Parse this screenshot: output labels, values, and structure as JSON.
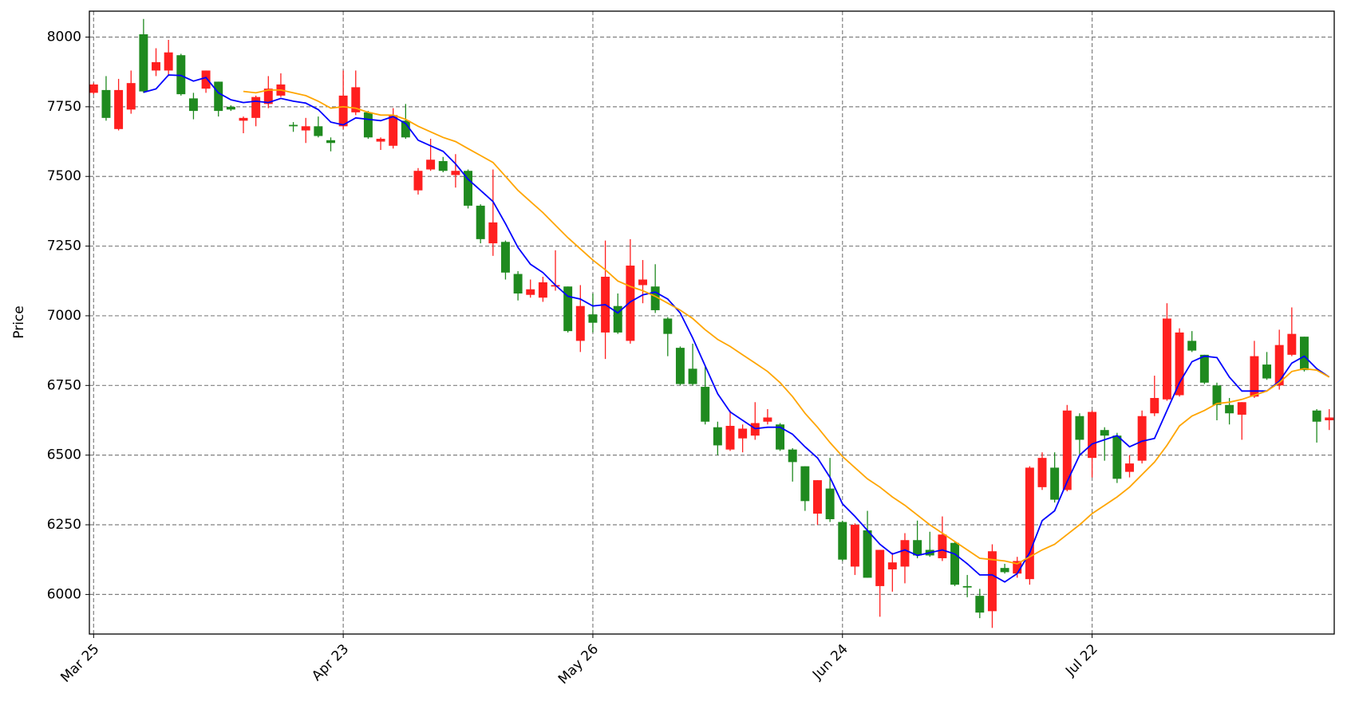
{
  "chart_data": {
    "type": "candlestick",
    "ylabel": "Price",
    "categories": [
      "Mar 25",
      null,
      null,
      null,
      null,
      null,
      null,
      null,
      null,
      null,
      null,
      null,
      null,
      null,
      null,
      null,
      null,
      null,
      null,
      null,
      "Apr 23",
      null,
      null,
      null,
      null,
      null,
      null,
      null,
      null,
      null,
      null,
      null,
      null,
      null,
      null,
      null,
      null,
      null,
      null,
      null,
      "May 26",
      null,
      null,
      null,
      null,
      null,
      null,
      null,
      null,
      null,
      null,
      null,
      null,
      null,
      null,
      null,
      null,
      null,
      null,
      null,
      "Jun 24",
      null,
      null,
      null,
      null,
      null,
      null,
      null,
      null,
      null,
      null,
      null,
      null,
      null,
      null,
      null,
      null,
      null,
      null,
      null,
      "Jul 22",
      null,
      null,
      null,
      null,
      null,
      null,
      null,
      null,
      null,
      null,
      null,
      null,
      null,
      null,
      null,
      null,
      null,
      null,
      null
    ],
    "open": [
      7800,
      7810,
      7670,
      7740,
      8010,
      7880,
      7880,
      7935,
      7780,
      7815,
      7840,
      7750,
      7700,
      7710,
      7760,
      7790,
      7685,
      7665,
      7680,
      7630,
      7680,
      7730,
      7730,
      7625,
      7610,
      7700,
      7450,
      7525,
      7555,
      7505,
      7520,
      7395,
      7260,
      7265,
      7150,
      7075,
      7065,
      7105,
      7105,
      6910,
      7005,
      6940,
      7035,
      6910,
      7110,
      7105,
      6990,
      6885,
      6810,
      6745,
      6600,
      6520,
      6560,
      6570,
      6620,
      6610,
      6520,
      6460,
      6290,
      6380,
      6260,
      6100,
      6230,
      6030,
      6090,
      6100,
      6195,
      6160,
      6130,
      6185,
      6030,
      5995,
      5940,
      6095,
      6075,
      6055,
      6385,
      6455,
      6375,
      6640,
      6490,
      6590,
      6570,
      6440,
      6480,
      6650,
      6700,
      6715,
      6910,
      6860,
      6750,
      6680,
      6645,
      6710,
      6825,
      6750,
      6860,
      6925,
      6660,
      6625
    ],
    "close": [
      7830,
      7710,
      7810,
      7835,
      7805,
      7910,
      7945,
      7795,
      7735,
      7880,
      7735,
      7740,
      7710,
      7785,
      7815,
      7830,
      7680,
      7680,
      7645,
      7620,
      7790,
      7820,
      7640,
      7635,
      7720,
      7640,
      7520,
      7560,
      7520,
      7520,
      7395,
      7275,
      7335,
      7155,
      7080,
      7095,
      7120,
      7110,
      6945,
      7035,
      6975,
      7140,
      6940,
      7180,
      7130,
      7020,
      6935,
      6755,
      6755,
      6620,
      6535,
      6605,
      6595,
      6615,
      6635,
      6520,
      6475,
      6335,
      6410,
      6270,
      6125,
      6250,
      6060,
      6160,
      6115,
      6195,
      6140,
      6140,
      6215,
      6035,
      6025,
      5935,
      6155,
      6080,
      6120,
      6455,
      6490,
      6340,
      6660,
      6555,
      6655,
      6570,
      6415,
      6470,
      6640,
      6705,
      6990,
      6940,
      6875,
      6760,
      6680,
      6650,
      6690,
      6855,
      6775,
      6895,
      6935,
      6805,
      6620,
      6635
    ],
    "high": [
      7835,
      7860,
      7850,
      7880,
      8065,
      7960,
      7990,
      7940,
      7800,
      7880,
      7840,
      7755,
      7715,
      7790,
      7860,
      7870,
      7695,
      7710,
      7715,
      7640,
      7880,
      7880,
      7735,
      7640,
      7745,
      7760,
      7530,
      7635,
      7570,
      7580,
      7525,
      7400,
      7525,
      7270,
      7160,
      7130,
      7140,
      7235,
      7105,
      7110,
      7080,
      7270,
      7080,
      7275,
      7200,
      7185,
      6995,
      6890,
      6900,
      6820,
      6620,
      6660,
      6610,
      6690,
      6665,
      6615,
      6525,
      6460,
      6410,
      6490,
      6265,
      6255,
      6300,
      6160,
      6150,
      6220,
      6265,
      6225,
      6280,
      6190,
      6070,
      6020,
      6180,
      6110,
      6135,
      6460,
      6510,
      6510,
      6680,
      6650,
      6660,
      6600,
      6580,
      6500,
      6660,
      6785,
      7045,
      6955,
      6945,
      6860,
      6760,
      6705,
      6690,
      6910,
      6870,
      6950,
      7030,
      6925,
      6665,
      6665
    ],
    "low": [
      7795,
      7700,
      7665,
      7725,
      7800,
      7860,
      7860,
      7790,
      7705,
      7800,
      7715,
      7735,
      7655,
      7680,
      7745,
      7785,
      7660,
      7620,
      7640,
      7590,
      7670,
      7720,
      7635,
      7595,
      7600,
      7635,
      7435,
      7520,
      7515,
      7460,
      7385,
      7260,
      7215,
      7130,
      7055,
      7065,
      7050,
      7090,
      6940,
      6870,
      6940,
      6845,
      6935,
      6900,
      7045,
      7010,
      6855,
      6750,
      6750,
      6610,
      6500,
      6515,
      6510,
      6555,
      6610,
      6515,
      6405,
      6300,
      6250,
      6260,
      6120,
      6070,
      6060,
      5920,
      6010,
      6040,
      6130,
      6135,
      6120,
      6030,
      5990,
      5915,
      5880,
      6075,
      6060,
      6035,
      6375,
      6330,
      6370,
      6500,
      6420,
      6480,
      6400,
      6420,
      6470,
      6640,
      6695,
      6710,
      6870,
      6755,
      6625,
      6610,
      6555,
      6705,
      6770,
      6735,
      6855,
      6800,
      6545,
      6590
    ],
    "up_color": "#ff1f1f",
    "down_color": "#1f8a1f",
    "series": [
      {
        "color": "#0000ff",
        "values": [
          null,
          null,
          null,
          null,
          7802,
          7814,
          7864,
          7862,
          7842,
          7855,
          7800,
          7775,
          7765,
          7770,
          7765,
          7780,
          7770,
          7763,
          7740,
          7695,
          7685,
          7710,
          7705,
          7700,
          7715,
          7690,
          7630,
          7610,
          7590,
          7545,
          7490,
          7450,
          7410,
          7330,
          7245,
          7185,
          7155,
          7110,
          7070,
          7060,
          7035,
          7040,
          7010,
          7050,
          7075,
          7085,
          7060,
          7010,
          6920,
          6820,
          6720,
          6655,
          6625,
          6595,
          6600,
          6600,
          6575,
          6530,
          6490,
          6420,
          6325,
          6280,
          6230,
          6180,
          6145,
          6160,
          6140,
          6150,
          6160,
          6145,
          6110,
          6070,
          6070,
          6045,
          6075,
          6150,
          6265,
          6300,
          6405,
          6500,
          6540,
          6555,
          6570,
          6530,
          6550,
          6560,
          6660,
          6760,
          6835,
          6855,
          6850,
          6780,
          6730,
          6730,
          6730,
          6765,
          6830,
          6855,
          6810,
          6780
        ]
      },
      {
        "color": "#ffa500",
        "values": [
          null,
          null,
          null,
          null,
          null,
          null,
          null,
          null,
          null,
          null,
          null,
          null,
          7805,
          7800,
          7810,
          7810,
          7800,
          7790,
          7770,
          7745,
          7750,
          7745,
          7730,
          7720,
          7720,
          7705,
          7680,
          7660,
          7640,
          7625,
          7600,
          7575,
          7550,
          7500,
          7450,
          7410,
          7370,
          7325,
          7280,
          7240,
          7200,
          7165,
          7125,
          7105,
          7090,
          7070,
          7045,
          7020,
          6990,
          6950,
          6915,
          6890,
          6860,
          6830,
          6800,
          6760,
          6710,
          6650,
          6600,
          6545,
          6495,
          6455,
          6415,
          6385,
          6350,
          6320,
          6285,
          6250,
          6220,
          6190,
          6160,
          6130,
          6125,
          6120,
          6110,
          6135,
          6160,
          6180,
          6215,
          6250,
          6290,
          6320,
          6350,
          6385,
          6430,
          6475,
          6535,
          6605,
          6640,
          6660,
          6685,
          6690,
          6700,
          6715,
          6730,
          6760,
          6800,
          6810,
          6805,
          6780
        ]
      }
    ],
    "xlim": [
      -0.34,
      99.4
    ],
    "ylim": [
      5858,
      8093
    ],
    "yticks": [
      6000,
      6250,
      6500,
      6750,
      7000,
      7250,
      7500,
      7750,
      8000
    ],
    "grid": true
  }
}
